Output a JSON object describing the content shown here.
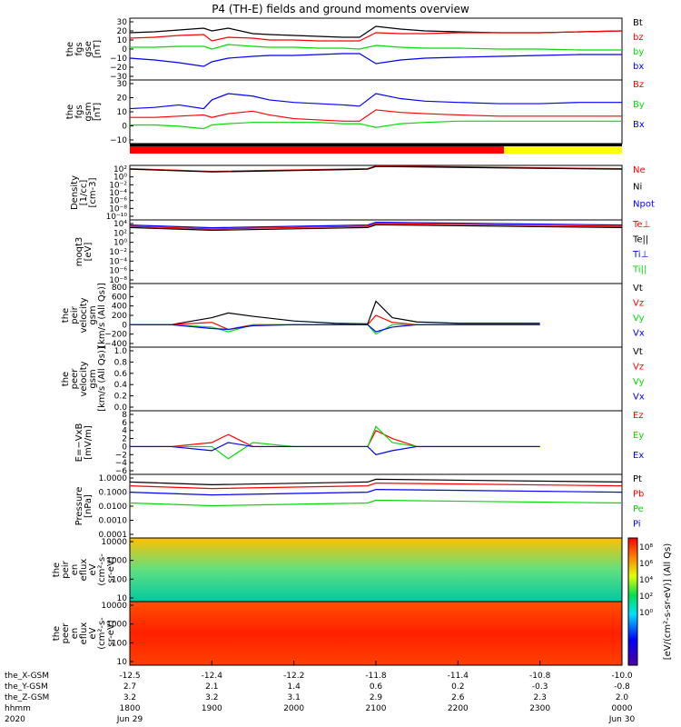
{
  "title": "P4 (TH-E) fields and ground moments overview",
  "colors": {
    "black": "#000000",
    "red": "#ff0000",
    "green": "#00dd00",
    "blue": "#0000ff",
    "yellow": "#ffff00"
  },
  "chart_data": {
    "type": "line",
    "x_ticks": [
      "1800",
      "1900",
      "2000",
      "2100",
      "2200",
      "2300",
      "0000"
    ],
    "x_date_labels": [
      "Jun 29",
      "",
      "",
      "",
      "",
      "",
      "Jun 30"
    ],
    "orbit_rows": [
      {
        "label": "the_X-GSM",
        "values": [
          "-12.5",
          "-12.4",
          "-12.2",
          "-11.8",
          "-11.4",
          "-10.8",
          "-10.0"
        ]
      },
      {
        "label": "the_Y-GSM",
        "values": [
          "2.7",
          "2.1",
          "1.4",
          "0.6",
          "0.2",
          "-0.3",
          "-0.8"
        ]
      },
      {
        "label": "the_Z-GSM",
        "values": [
          "3.2",
          "3.2",
          "3.1",
          "2.9",
          "2.6",
          "2.3",
          "2.0"
        ]
      },
      {
        "label": "hhmm",
        "values": [
          "1800",
          "1900",
          "2000",
          "2100",
          "2200",
          "2300",
          "0000"
        ]
      },
      {
        "label": "2020",
        "values": [
          "Jun 29",
          "",
          "",
          "",
          "",
          "",
          "Jun 30"
        ]
      }
    ],
    "panels": [
      {
        "id": "fgs_gse",
        "ylabel": [
          "the",
          "fgs",
          "gse",
          "[nT]"
        ],
        "yticks": [
          "30",
          "20",
          "10",
          "0",
          "−10",
          "−20",
          "−30"
        ],
        "ylim": [
          -30,
          30
        ],
        "legend": [
          {
            "name": "Bt",
            "color": "#000000"
          },
          {
            "name": "bz",
            "color": "#ff0000"
          },
          {
            "name": "by",
            "color": "#00dd00"
          },
          {
            "name": "bx",
            "color": "#0000ff"
          }
        ]
      },
      {
        "id": "fgs_gsm",
        "ylabel": [
          "the",
          "fgs",
          "gsm",
          "[nT]"
        ],
        "yticks": [
          "30",
          "20",
          "10",
          "0",
          "−10"
        ],
        "ylim": [
          -15,
          30
        ],
        "legend": [
          {
            "name": "Bz",
            "color": "#ff0000"
          },
          {
            "name": "By",
            "color": "#00dd00"
          },
          {
            "name": "Bx",
            "color": "#0000ff"
          }
        ]
      },
      {
        "id": "density",
        "ylabel": [
          "Density",
          "[1/cc]",
          "[cm-3]"
        ],
        "yticks": [
          "10²",
          "10⁰",
          "10⁻²",
          "10⁻⁴",
          "10⁻⁶",
          "10⁻⁸",
          "10⁻¹⁰"
        ],
        "scale": "log",
        "legend": [
          {
            "name": "Ne",
            "color": "#ff0000"
          },
          {
            "name": "Ni",
            "color": "#000000"
          },
          {
            "name": "Npot",
            "color": "#0000ff"
          }
        ]
      },
      {
        "id": "temperature",
        "ylabel": [
          "moqt3",
          "[eV]"
        ],
        "yticks": [
          "10⁴",
          "10²",
          "10⁰",
          "10⁻²",
          "10⁻⁴",
          "10⁻⁶",
          "10⁻⁸"
        ],
        "scale": "log",
        "legend": [
          {
            "name": "Te⊥",
            "color": "#ff0000"
          },
          {
            "name": "Te||",
            "color": "#000000"
          },
          {
            "name": "Ti⊥",
            "color": "#0000ff"
          },
          {
            "name": "Ti||",
            "color": "#00dd00"
          }
        ]
      },
      {
        "id": "peir_velocity",
        "ylabel": [
          "the",
          "peir",
          "velocity",
          "gsm",
          "[km/s (All Qs)]"
        ],
        "yticks": [
          "800",
          "600",
          "400",
          "200",
          "0",
          "−200",
          "−400"
        ],
        "ylim": [
          -400,
          800
        ],
        "legend": [
          {
            "name": "Vt",
            "color": "#000000"
          },
          {
            "name": "Vz",
            "color": "#ff0000"
          },
          {
            "name": "Vy",
            "color": "#00dd00"
          },
          {
            "name": "Vx",
            "color": "#0000ff"
          }
        ]
      },
      {
        "id": "peer_velocity",
        "ylabel": [
          "the",
          "peer",
          "velocity",
          "gsm",
          "[km/s (All Qs)]"
        ],
        "yticks": [
          "1.0",
          "0.8",
          "0.6",
          "0.4",
          "0.2",
          "0.0"
        ],
        "ylim": [
          0,
          1
        ],
        "legend": [
          {
            "name": "Vt",
            "color": "#000000"
          },
          {
            "name": "Vz",
            "color": "#ff0000"
          },
          {
            "name": "Vy",
            "color": "#00dd00"
          },
          {
            "name": "Vx",
            "color": "#0000ff"
          }
        ]
      },
      {
        "id": "efield",
        "ylabel": [
          "E=−VxB",
          "[mV/m]"
        ],
        "yticks": [
          "8",
          "6",
          "4",
          "2",
          "0",
          "−2",
          "−4",
          "−6"
        ],
        "ylim": [
          -6,
          8
        ],
        "legend": [
          {
            "name": "Ez",
            "color": "#ff0000"
          },
          {
            "name": "Ey",
            "color": "#00dd00"
          },
          {
            "name": "Ex",
            "color": "#0000ff"
          }
        ]
      },
      {
        "id": "pressure",
        "ylabel": [
          "Pressure",
          "[nPa]"
        ],
        "yticks": [
          "1.0000",
          "0.1000",
          "0.0100",
          "0.0010",
          "0.0001"
        ],
        "scale": "log",
        "legend": [
          {
            "name": "Pt",
            "color": "#000000"
          },
          {
            "name": "Pb",
            "color": "#ff0000"
          },
          {
            "name": "Pe",
            "color": "#00dd00"
          },
          {
            "name": "Pi",
            "color": "#0000ff"
          }
        ]
      },
      {
        "id": "peir_spec",
        "ylabel": [
          "the",
          "peir",
          "en",
          "eflux",
          "eV",
          "(cm²-s-",
          "sr-eV)"
        ],
        "yticks": [
          "10000",
          "1000",
          "100",
          "10"
        ],
        "scale": "log",
        "type": "heatmap"
      },
      {
        "id": "peer_spec",
        "ylabel": [
          "the",
          "peer",
          "en",
          "eflux",
          "eV",
          "(cm²-s-",
          "sr-eV)"
        ],
        "yticks": [
          "10000",
          "1000",
          "100",
          "10"
        ],
        "scale": "log",
        "type": "heatmap"
      }
    ],
    "colorbar": {
      "title": "[eV/(cm²-s-sr-eV)] (All Qs)",
      "ticks": [
        "10⁸",
        "10⁶",
        "10⁴",
        "10²",
        "10⁰"
      ]
    },
    "series": [
      {
        "panel": "fgs_gse",
        "name": "Bt",
        "x": [
          0,
          0.3,
          0.6,
          0.9,
          1.0,
          1.2,
          1.5,
          1.7,
          2.0,
          2.3,
          2.6,
          2.8,
          3.0,
          3.3,
          3.6,
          4.0,
          4.5,
          5.0,
          5.5,
          6.0
        ],
        "y": [
          18,
          19,
          21,
          23,
          20,
          23,
          17,
          16,
          15,
          14,
          13,
          13,
          25,
          22,
          20,
          19,
          18,
          18,
          19,
          20
        ]
      },
      {
        "panel": "fgs_gse",
        "name": "bz",
        "x": [
          0,
          0.3,
          0.6,
          0.9,
          1.0,
          1.2,
          1.5,
          1.7,
          2.0,
          2.3,
          2.6,
          2.8,
          3.0,
          3.3,
          3.6,
          4.0,
          4.5,
          5.0,
          5.5,
          6.0
        ],
        "y": [
          12,
          13,
          15,
          16,
          9,
          13,
          12,
          10,
          10,
          9,
          9,
          9,
          18,
          17,
          17,
          18,
          18,
          18,
          19,
          20
        ]
      },
      {
        "panel": "fgs_gse",
        "name": "by",
        "x": [
          0,
          0.3,
          0.6,
          0.9,
          1.0,
          1.2,
          1.5,
          1.7,
          2.0,
          2.3,
          2.6,
          2.8,
          3.0,
          3.3,
          3.6,
          4.0,
          4.5,
          5.0,
          5.5,
          6.0
        ],
        "y": [
          2,
          2,
          3,
          3,
          0,
          5,
          3,
          2,
          2,
          1,
          1,
          0,
          4,
          2,
          1,
          1,
          0,
          0,
          -1,
          -1
        ]
      },
      {
        "panel": "fgs_gse",
        "name": "bx",
        "x": [
          0,
          0.3,
          0.6,
          0.9,
          1.0,
          1.2,
          1.5,
          1.7,
          2.0,
          2.3,
          2.6,
          2.8,
          3.0,
          3.3,
          3.6,
          4.0,
          4.5,
          5.0,
          5.5,
          6.0
        ],
        "y": [
          -10,
          -12,
          -15,
          -19,
          -14,
          -10,
          -8,
          -7,
          -7,
          -6,
          -5,
          -5,
          -16,
          -12,
          -10,
          -9,
          -8,
          -7,
          -6,
          -6
        ]
      },
      {
        "panel": "fgs_gsm",
        "name": "Bz",
        "x": [
          0,
          0.3,
          0.6,
          0.9,
          1.0,
          1.2,
          1.5,
          1.7,
          2.0,
          2.3,
          2.6,
          2.8,
          3.0,
          3.3,
          3.6,
          4.0,
          4.5,
          5.0,
          5.5,
          6.0
        ],
        "y": [
          3,
          3,
          4,
          5,
          3,
          6,
          8,
          5,
          2,
          1,
          0,
          0,
          9,
          7,
          6,
          5,
          4,
          4,
          4,
          4
        ]
      },
      {
        "panel": "fgs_gsm",
        "name": "By",
        "x": [
          0,
          0.3,
          0.6,
          0.9,
          1.0,
          1.2,
          1.5,
          1.7,
          2.0,
          2.3,
          2.6,
          2.8,
          3.0,
          3.3,
          3.6,
          4.0,
          4.5,
          5.0,
          5.5,
          6.0
        ],
        "y": [
          -3,
          -3,
          -4,
          -6,
          -3,
          -2,
          -1,
          -1,
          -1,
          -1,
          -2,
          -2,
          -5,
          -2,
          -1,
          0,
          0,
          0,
          0,
          0
        ]
      },
      {
        "panel": "fgs_gsm",
        "name": "Bx",
        "x": [
          0,
          0.3,
          0.6,
          0.9,
          1.0,
          1.2,
          1.5,
          1.7,
          2.0,
          2.3,
          2.6,
          2.8,
          3.0,
          3.3,
          3.6,
          4.0,
          4.5,
          5.0,
          5.5,
          6.0
        ],
        "y": [
          10,
          11,
          13,
          10,
          17,
          22,
          20,
          17,
          15,
          14,
          13,
          12,
          22,
          18,
          16,
          15,
          14,
          14,
          15,
          15
        ]
      },
      {
        "panel": "efield",
        "name": "Ez",
        "x": [
          0,
          0.5,
          1.0,
          1.2,
          1.5,
          2.0,
          2.5,
          2.9,
          3.0,
          3.2,
          3.5,
          4.0,
          4.5,
          5.0
        ],
        "y": [
          0,
          0,
          1,
          3,
          0,
          0,
          0,
          0,
          4,
          2,
          0,
          0,
          0,
          0
        ]
      },
      {
        "panel": "efield",
        "name": "Ey",
        "x": [
          0,
          0.5,
          1.0,
          1.2,
          1.5,
          2.0,
          2.5,
          2.9,
          3.0,
          3.2,
          3.5,
          4.0,
          4.5,
          5.0
        ],
        "y": [
          0,
          0,
          0,
          -3,
          1,
          0,
          0,
          0,
          5,
          1,
          0,
          0,
          0,
          0
        ]
      },
      {
        "panel": "efield",
        "name": "Ex",
        "x": [
          0,
          0.5,
          1.0,
          1.2,
          1.5,
          2.0,
          2.5,
          2.9,
          3.0,
          3.2,
          3.5,
          4.0,
          4.5,
          5.0
        ],
        "y": [
          0,
          0,
          -1,
          1,
          0,
          0,
          0,
          0,
          -2,
          -1,
          0,
          0,
          0,
          0
        ]
      },
      {
        "panel": "peir_velocity",
        "name": "Vt",
        "x": [
          0,
          0.5,
          1.0,
          1.2,
          1.5,
          2.0,
          2.5,
          2.9,
          3.0,
          3.2,
          3.5,
          4.0,
          4.5,
          5.0
        ],
        "y": [
          0,
          0,
          150,
          250,
          180,
          80,
          30,
          20,
          500,
          150,
          60,
          30,
          30,
          30
        ]
      },
      {
        "panel": "peir_velocity",
        "name": "Vz",
        "x": [
          0,
          0.5,
          1.0,
          1.2,
          1.5,
          2.0,
          2.5,
          2.9,
          3.0,
          3.2,
          3.5,
          4.0,
          4.5,
          5.0
        ],
        "y": [
          0,
          0,
          50,
          -100,
          0,
          0,
          0,
          0,
          200,
          50,
          0,
          0,
          0,
          0
        ]
      },
      {
        "panel": "peir_velocity",
        "name": "Vy",
        "x": [
          0,
          0.5,
          1.0,
          1.2,
          1.5,
          2.0,
          2.5,
          2.9,
          3.0,
          3.2,
          3.5,
          4.0,
          4.5,
          5.0
        ],
        "y": [
          0,
          0,
          -50,
          -150,
          0,
          0,
          0,
          0,
          -200,
          0,
          0,
          0,
          0,
          0
        ]
      },
      {
        "panel": "peir_velocity",
        "name": "Vx",
        "x": [
          0,
          0.5,
          1.0,
          1.2,
          1.5,
          2.0,
          2.5,
          2.9,
          3.0,
          3.2,
          3.5,
          4.0,
          4.5,
          5.0
        ],
        "y": [
          0,
          0,
          -80,
          -100,
          -20,
          0,
          0,
          0,
          -150,
          -50,
          0,
          0,
          0,
          0
        ]
      }
    ]
  }
}
